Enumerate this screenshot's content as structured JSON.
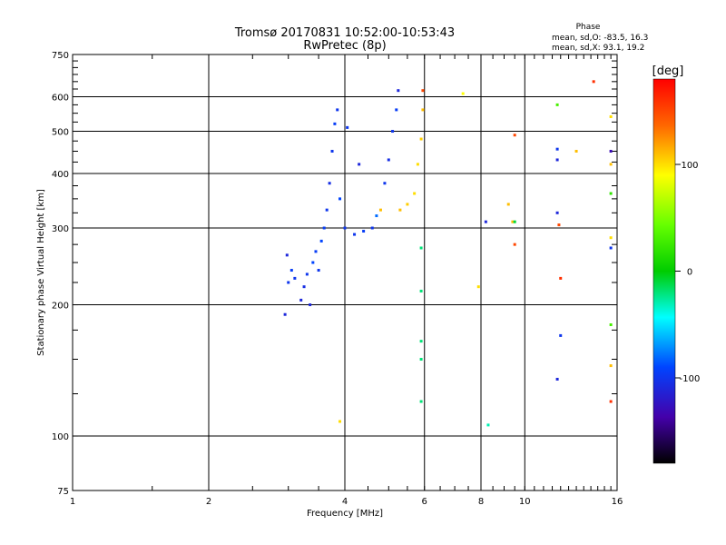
{
  "chart_data": {
    "type": "scatter",
    "title": "Tromsø 20170831 10:52:00-10:53:43",
    "subtitle": "RwPretec (8p)",
    "xlabel": "Frequency [MHz]",
    "ylabel": "Stationary phase Virtual Height [km]",
    "x_scale": "log",
    "y_scale": "log",
    "xlim": [
      1,
      16
    ],
    "ylim": [
      75,
      750
    ],
    "x_ticks": [
      1,
      2,
      4,
      6,
      8,
      10,
      16
    ],
    "x_tick_labels": [
      "1",
      "2",
      "4",
      "6",
      "8",
      "10",
      "16"
    ],
    "y_ticks": [
      75,
      100,
      200,
      300,
      400,
      500,
      600,
      750
    ],
    "y_tick_labels": [
      "75",
      "100",
      "200",
      "300",
      "400",
      "500",
      "600",
      "750"
    ],
    "grid": true,
    "stats": {
      "heading": "Phase",
      "line1": "mean, sd,O: -83.5, 16.3",
      "line2": "mean, sd,X:  93.1, 19.2"
    },
    "colorbar": {
      "label": "[deg]",
      "range": [
        -180,
        180
      ],
      "ticks": [
        100,
        0,
        -100
      ],
      "tick_labels": [
        "100",
        "0",
        "-100"
      ]
    },
    "points": [
      {
        "x": 2.95,
        "y": 190,
        "phase": -110
      },
      {
        "x": 2.98,
        "y": 260,
        "phase": -110
      },
      {
        "x": 3.0,
        "y": 225,
        "phase": -100
      },
      {
        "x": 3.05,
        "y": 240,
        "phase": -95
      },
      {
        "x": 3.1,
        "y": 230,
        "phase": -100
      },
      {
        "x": 3.2,
        "y": 205,
        "phase": -110
      },
      {
        "x": 3.25,
        "y": 220,
        "phase": -105
      },
      {
        "x": 3.3,
        "y": 235,
        "phase": -100
      },
      {
        "x": 3.35,
        "y": 200,
        "phase": -110
      },
      {
        "x": 3.4,
        "y": 250,
        "phase": -90
      },
      {
        "x": 3.45,
        "y": 265,
        "phase": -95
      },
      {
        "x": 3.5,
        "y": 240,
        "phase": -100
      },
      {
        "x": 3.55,
        "y": 280,
        "phase": -90
      },
      {
        "x": 3.6,
        "y": 300,
        "phase": -95
      },
      {
        "x": 3.65,
        "y": 330,
        "phase": -100
      },
      {
        "x": 3.7,
        "y": 380,
        "phase": -105
      },
      {
        "x": 3.75,
        "y": 450,
        "phase": -100
      },
      {
        "x": 3.8,
        "y": 520,
        "phase": -95
      },
      {
        "x": 3.85,
        "y": 560,
        "phase": -100
      },
      {
        "x": 3.9,
        "y": 350,
        "phase": -90
      },
      {
        "x": 4.0,
        "y": 300,
        "phase": -100
      },
      {
        "x": 4.05,
        "y": 510,
        "phase": -100
      },
      {
        "x": 4.2,
        "y": 290,
        "phase": -100
      },
      {
        "x": 4.3,
        "y": 420,
        "phase": -110
      },
      {
        "x": 4.4,
        "y": 295,
        "phase": -95
      },
      {
        "x": 4.6,
        "y": 300,
        "phase": -100
      },
      {
        "x": 4.7,
        "y": 320,
        "phase": -80
      },
      {
        "x": 4.8,
        "y": 330,
        "phase": 110
      },
      {
        "x": 4.9,
        "y": 380,
        "phase": -100
      },
      {
        "x": 5.0,
        "y": 430,
        "phase": -105
      },
      {
        "x": 5.1,
        "y": 500,
        "phase": -100
      },
      {
        "x": 5.2,
        "y": 560,
        "phase": -95
      },
      {
        "x": 5.25,
        "y": 620,
        "phase": -110
      },
      {
        "x": 5.3,
        "y": 330,
        "phase": 110
      },
      {
        "x": 5.5,
        "y": 340,
        "phase": 105
      },
      {
        "x": 5.7,
        "y": 360,
        "phase": 100
      },
      {
        "x": 5.8,
        "y": 420,
        "phase": 100
      },
      {
        "x": 5.9,
        "y": 480,
        "phase": 105
      },
      {
        "x": 5.95,
        "y": 560,
        "phase": 110
      },
      {
        "x": 5.95,
        "y": 620,
        "phase": 150
      },
      {
        "x": 5.9,
        "y": 270,
        "phase": -20
      },
      {
        "x": 5.9,
        "y": 215,
        "phase": -20
      },
      {
        "x": 5.9,
        "y": 165,
        "phase": -20
      },
      {
        "x": 5.9,
        "y": 150,
        "phase": -20
      },
      {
        "x": 5.9,
        "y": 120,
        "phase": -20
      },
      {
        "x": 7.3,
        "y": 610,
        "phase": 90
      },
      {
        "x": 7.9,
        "y": 220,
        "phase": 100
      },
      {
        "x": 8.2,
        "y": 310,
        "phase": -110
      },
      {
        "x": 8.3,
        "y": 106,
        "phase": -30
      },
      {
        "x": 9.2,
        "y": 340,
        "phase": 110
      },
      {
        "x": 9.4,
        "y": 310,
        "phase": 110
      },
      {
        "x": 9.5,
        "y": 490,
        "phase": 150
      },
      {
        "x": 9.5,
        "y": 275,
        "phase": 150
      },
      {
        "x": 9.5,
        "y": 310,
        "phase": -10
      },
      {
        "x": 11.8,
        "y": 575,
        "phase": 30
      },
      {
        "x": 11.8,
        "y": 455,
        "phase": -100
      },
      {
        "x": 11.8,
        "y": 430,
        "phase": -110
      },
      {
        "x": 11.8,
        "y": 325,
        "phase": -110
      },
      {
        "x": 11.9,
        "y": 305,
        "phase": 150
      },
      {
        "x": 12.0,
        "y": 230,
        "phase": 160
      },
      {
        "x": 12.0,
        "y": 170,
        "phase": -100
      },
      {
        "x": 11.8,
        "y": 135,
        "phase": -110
      },
      {
        "x": 13.0,
        "y": 450,
        "phase": 110
      },
      {
        "x": 14.2,
        "y": 650,
        "phase": 160
      },
      {
        "x": 15.5,
        "y": 540,
        "phase": 100
      },
      {
        "x": 15.5,
        "y": 450,
        "phase": -130
      },
      {
        "x": 15.5,
        "y": 420,
        "phase": 110
      },
      {
        "x": 15.5,
        "y": 360,
        "phase": 20
      },
      {
        "x": 15.5,
        "y": 285,
        "phase": 100
      },
      {
        "x": 15.5,
        "y": 270,
        "phase": -100
      },
      {
        "x": 15.5,
        "y": 180,
        "phase": 30
      },
      {
        "x": 15.5,
        "y": 145,
        "phase": 110
      },
      {
        "x": 15.5,
        "y": 120,
        "phase": 160
      },
      {
        "x": 3.9,
        "y": 108,
        "phase": 100
      }
    ]
  }
}
